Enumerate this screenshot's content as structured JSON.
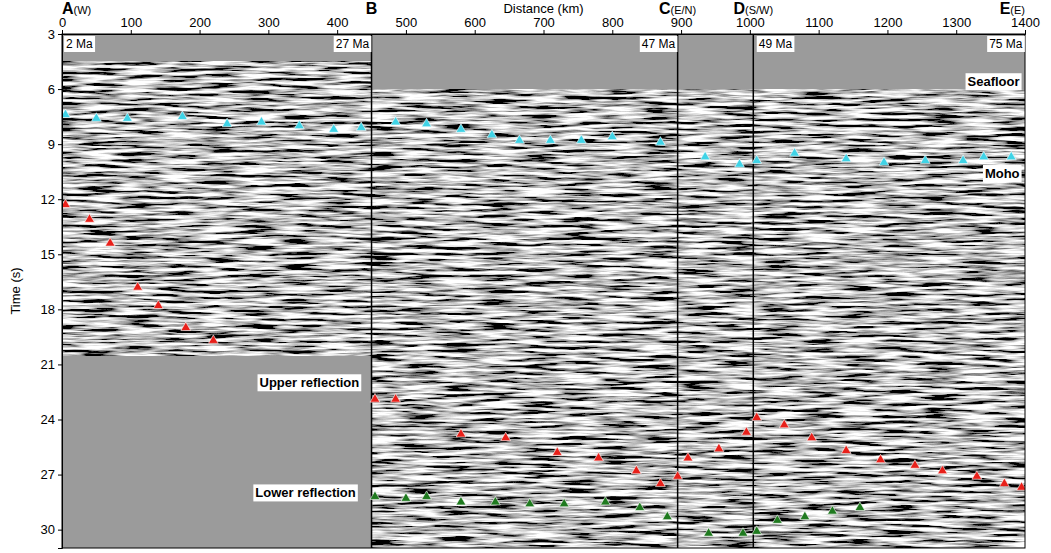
{
  "chart_data": {
    "type": "scatter",
    "x_label": "Distance (km)",
    "y_label": "Time (s)",
    "xlim": [
      0,
      1400
    ],
    "ylim": [
      3,
      31
    ],
    "xticks": [
      0,
      100,
      200,
      300,
      400,
      500,
      600,
      700,
      800,
      900,
      1000,
      1100,
      1200,
      1300,
      1400
    ],
    "yticks": [
      3,
      6,
      9,
      12,
      15,
      18,
      21,
      24,
      27,
      30
    ],
    "grid": false,
    "marker": "triangle",
    "record_extent": [
      {
        "xlim": [
          0,
          450
        ],
        "ylim": [
          4.5,
          20.5
        ]
      },
      {
        "xlim": [
          450,
          1400
        ],
        "ylim": [
          6,
          31
        ]
      }
    ],
    "sections": [
      {
        "label": "A",
        "sub": "(W)",
        "x": 0
      },
      {
        "label": "B",
        "sub": "",
        "x": 450
      },
      {
        "label": "C",
        "sub": "(E/N)",
        "x": 895
      },
      {
        "label": "D",
        "sub": "(S/W)",
        "x": 1005
      },
      {
        "label": "E",
        "sub": "(E)",
        "x": 1400
      }
    ],
    "ages": [
      {
        "label": "2 Ma",
        "x": 3
      },
      {
        "label": "27 Ma",
        "x": 395
      },
      {
        "label": "47 Ma",
        "x": 840
      },
      {
        "label": "49 Ma",
        "x": 1010
      },
      {
        "label": "75 Ma",
        "x": 1345
      }
    ],
    "annotations": [
      {
        "text": "Seafloor",
        "x": 1395,
        "y": 5.6
      },
      {
        "text": "Moho",
        "x": 1395,
        "y": 10.6
      },
      {
        "text": "Upper reflection",
        "x": 435,
        "y": 22.0
      },
      {
        "text": "Lower reflection",
        "x": 430,
        "y": 28.0
      }
    ],
    "series": [
      {
        "name": "Moho",
        "color": "#3fd3e6",
        "x": [
          5,
          50,
          95,
          175,
          240,
          290,
          345,
          395,
          435,
          485,
          530,
          580,
          625,
          665,
          710,
          755,
          800,
          870,
          935,
          985,
          1010,
          1065,
          1140,
          1195,
          1255,
          1310,
          1340,
          1380
        ],
        "values": [
          7.4,
          7.6,
          7.6,
          7.5,
          7.9,
          7.8,
          8.0,
          8.2,
          8.1,
          7.8,
          7.9,
          8.2,
          8.5,
          8.8,
          8.8,
          8.8,
          8.6,
          8.9,
          9.7,
          10.1,
          9.9,
          9.5,
          9.8,
          10.0,
          9.9,
          9.9,
          9.7,
          9.7
        ]
      },
      {
        "name": "Upper reflection",
        "color": "#e8201a",
        "x": [
          5,
          40,
          70,
          110,
          140,
          180,
          220,
          455,
          485,
          580,
          645,
          720,
          780,
          835,
          870,
          895,
          910,
          955,
          995,
          1010,
          1050,
          1090,
          1140,
          1190,
          1240,
          1280,
          1330,
          1370,
          1395
        ],
        "values": [
          12.3,
          13.1,
          14.4,
          16.8,
          17.8,
          19.0,
          19.7,
          22.9,
          22.9,
          24.8,
          25.0,
          25.8,
          26.1,
          26.8,
          27.5,
          27.1,
          26.1,
          25.6,
          24.7,
          23.9,
          24.3,
          25.0,
          25.7,
          26.2,
          26.5,
          26.8,
          27.1,
          27.5,
          27.7
        ]
      },
      {
        "name": "Lower reflection",
        "color": "#1f7a1f",
        "x": [
          455,
          500,
          530,
          580,
          630,
          680,
          730,
          790,
          840,
          880,
          940,
          990,
          1010,
          1040,
          1080,
          1120,
          1160
        ],
        "values": [
          28.2,
          28.3,
          28.2,
          28.5,
          28.5,
          28.6,
          28.6,
          28.5,
          28.8,
          29.3,
          30.2,
          30.2,
          30.1,
          29.5,
          29.3,
          29.0,
          28.8
        ]
      }
    ]
  }
}
